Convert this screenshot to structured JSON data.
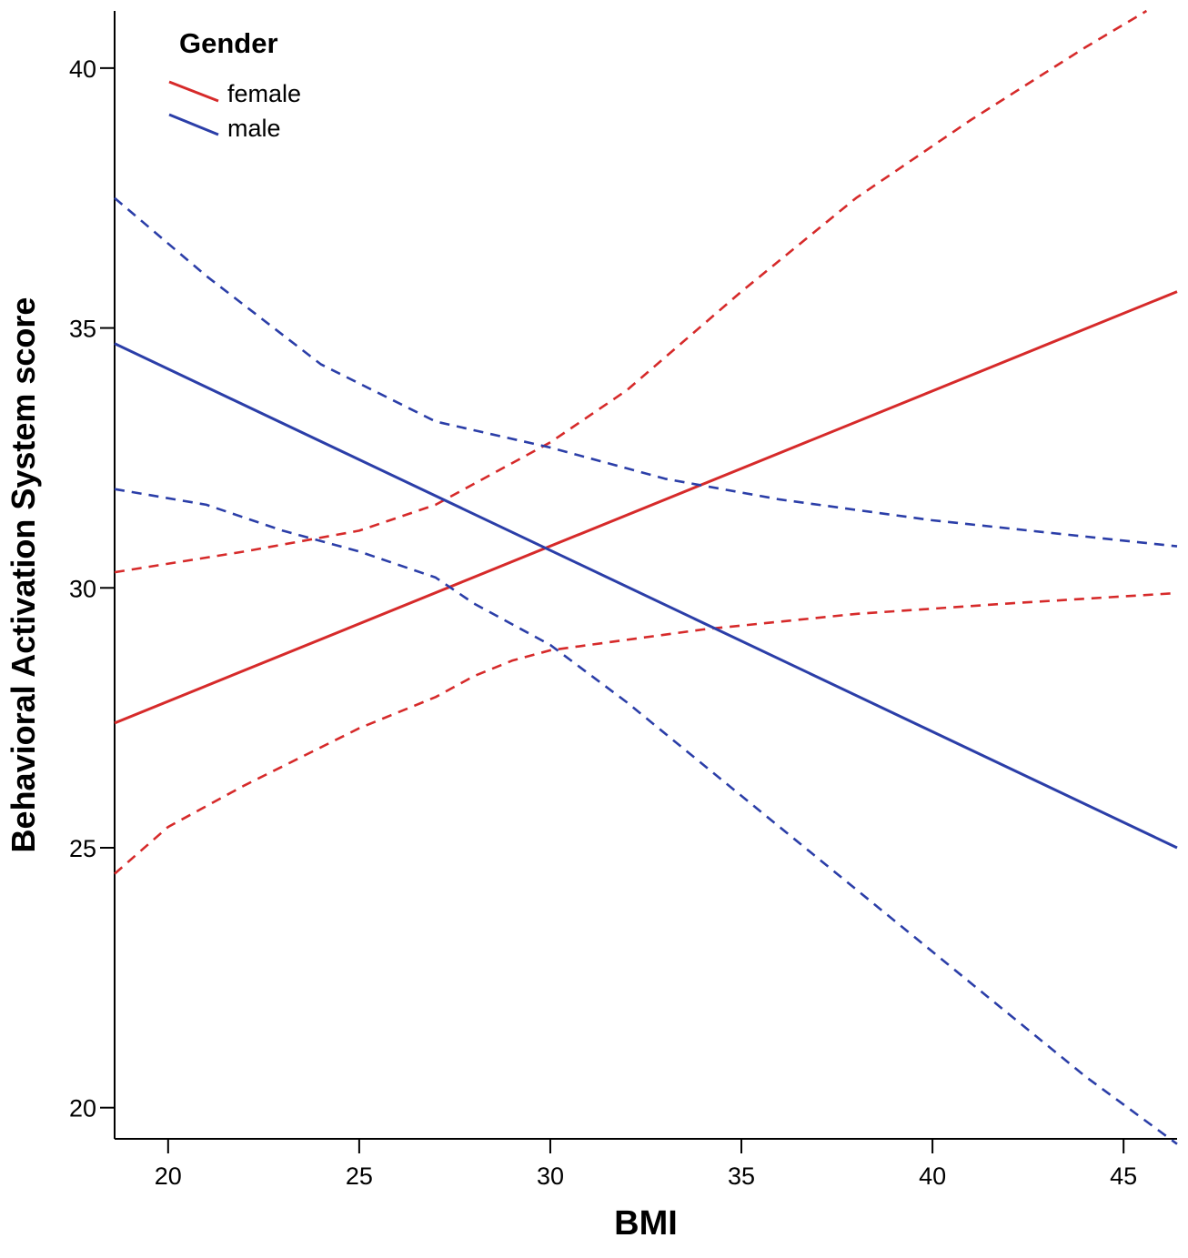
{
  "chart_data": {
    "type": "line",
    "title": "",
    "xlabel": "BMI",
    "ylabel": "Behavioral Activation System score",
    "xlim": [
      18.6,
      46.4
    ],
    "ylim": [
      19.4,
      41.1
    ],
    "xticks": [
      20,
      25,
      30,
      35,
      40,
      45
    ],
    "yticks": [
      20,
      25,
      30,
      35,
      40
    ],
    "grid": false,
    "legend": {
      "title": "Gender",
      "placement": "top-left",
      "entries": [
        {
          "name": "female",
          "color": "#d62a2a"
        },
        {
          "name": "male",
          "color": "#2b3ea8"
        }
      ]
    },
    "series": [
      {
        "name": "female",
        "style": "solid",
        "color": "#d62a2a",
        "x": [
          18.6,
          46.4
        ],
        "y": [
          27.4,
          35.7
        ]
      },
      {
        "name": "female upper CI",
        "style": "dashed",
        "color": "#d62a2a",
        "x": [
          18.6,
          22,
          25,
          27,
          28,
          30,
          32,
          35,
          38,
          41,
          44,
          45.6
        ],
        "y": [
          30.3,
          30.7,
          31.1,
          31.6,
          32.0,
          32.8,
          33.8,
          35.7,
          37.5,
          39.0,
          40.4,
          41.1
        ]
      },
      {
        "name": "female lower CI",
        "style": "dashed",
        "color": "#d62a2a",
        "x": [
          18.6,
          20,
          22,
          25,
          27,
          28,
          29,
          30,
          31,
          34,
          38,
          42,
          46.4
        ],
        "y": [
          24.5,
          25.4,
          26.2,
          27.3,
          27.9,
          28.3,
          28.6,
          28.8,
          28.9,
          29.2,
          29.5,
          29.7,
          29.9
        ]
      },
      {
        "name": "male",
        "style": "solid",
        "color": "#2b3ea8",
        "x": [
          18.6,
          46.4
        ],
        "y": [
          34.7,
          25.0
        ]
      },
      {
        "name": "male upper CI",
        "style": "dashed",
        "color": "#2b3ea8",
        "x": [
          18.6,
          21,
          24,
          27,
          30,
          33,
          36,
          40,
          46.4
        ],
        "y": [
          37.5,
          36.0,
          34.3,
          33.2,
          32.7,
          32.1,
          31.7,
          31.3,
          30.8
        ]
      },
      {
        "name": "male lower CI",
        "style": "dashed",
        "color": "#2b3ea8",
        "x": [
          18.6,
          21,
          23,
          25,
          27,
          28,
          30,
          32,
          35,
          38,
          40,
          42,
          44,
          46.4
        ],
        "y": [
          31.9,
          31.6,
          31.1,
          30.7,
          30.2,
          29.7,
          28.9,
          27.8,
          26.0,
          24.2,
          23.0,
          21.8,
          20.6,
          19.3
        ]
      }
    ]
  }
}
